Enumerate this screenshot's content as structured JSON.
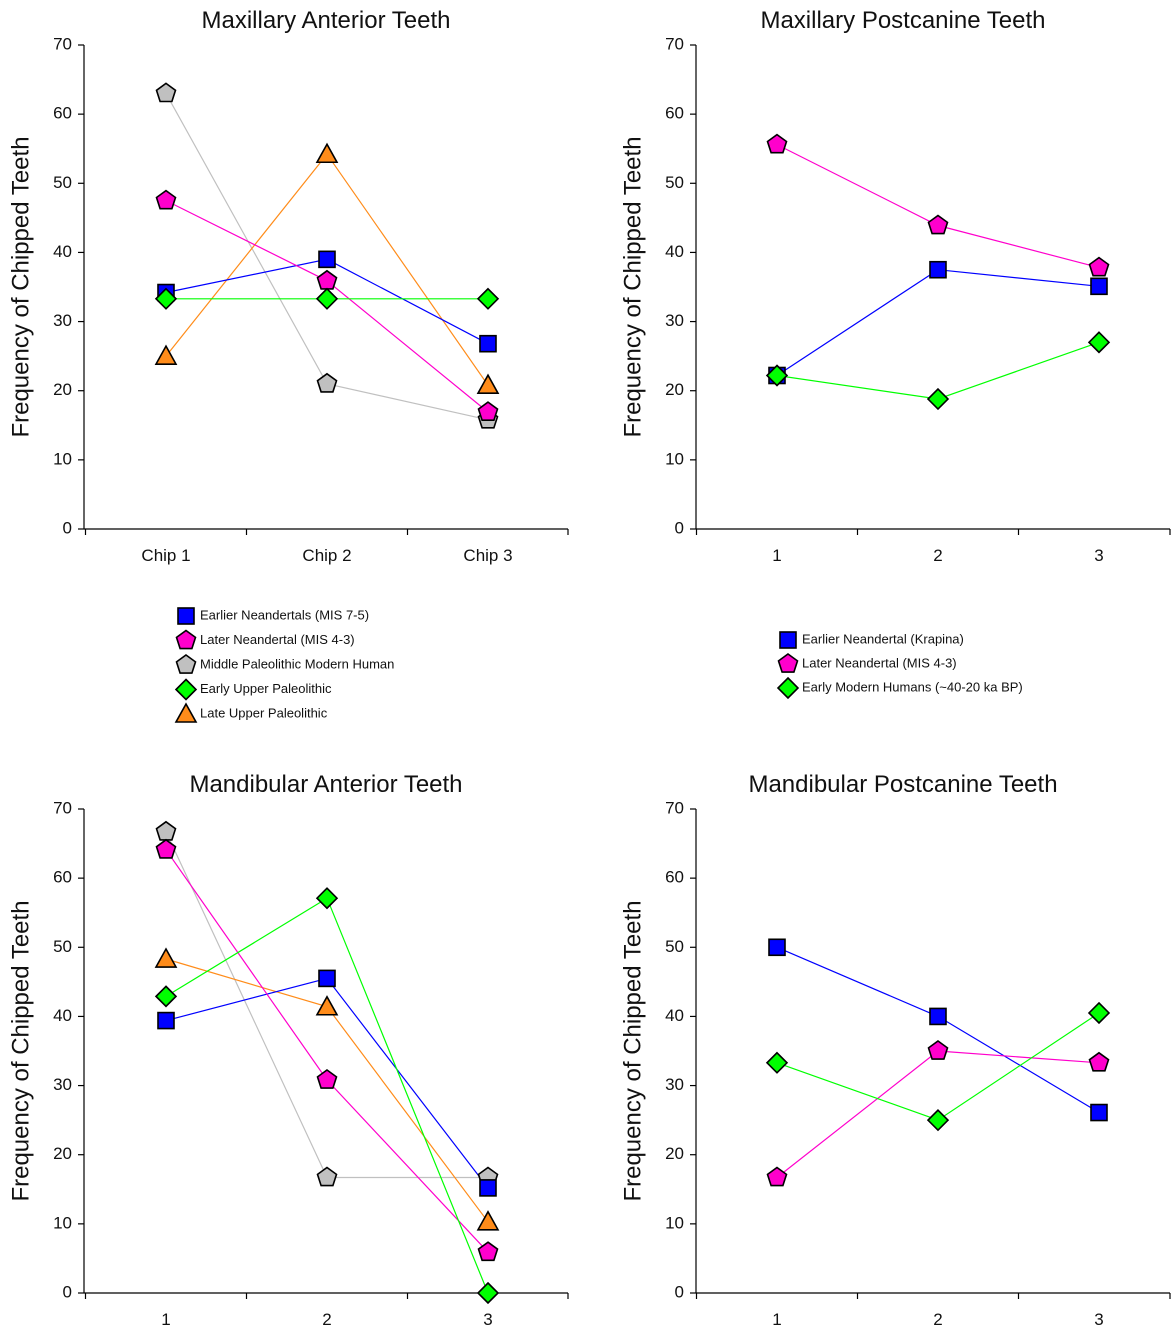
{
  "figure_type": "panel of four line charts",
  "legends": [
    {
      "entries": [
        {
          "label": "Earlier Neandertals (MIS 7-5)",
          "color": "#0000ff",
          "marker": "square"
        },
        {
          "label": "Later Neandertal (MIS 4-3)",
          "color": "#ff00cc",
          "marker": "pentagon"
        },
        {
          "label": "Middle Paleolithic Modern Human",
          "color": "#c0c0c0",
          "marker": "pentagon"
        },
        {
          "label": "Early Upper Paleolithic",
          "color": "#00ff00",
          "marker": "diamond"
        },
        {
          "label": "Late Upper Paleolithic",
          "color": "#ff8c1a",
          "marker": "triangle"
        }
      ]
    },
    {
      "entries": [
        {
          "label": "Earlier Neandertal (Krapina)",
          "color": "#0000ff",
          "marker": "square"
        },
        {
          "label": "Later Neandertal (MIS 4-3)",
          "color": "#ff00cc",
          "marker": "pentagon"
        },
        {
          "label": "Early Modern Humans (~40-20 ka BP)",
          "color": "#00ff00",
          "marker": "diamond"
        }
      ]
    }
  ],
  "chart_data": [
    {
      "type": "line",
      "title": "Maxillary Anterior Teeth",
      "xlabel": "",
      "ylabel": "Frequency of Chipped Teeth",
      "ylim": [
        0,
        70
      ],
      "yticks": [
        0,
        10,
        20,
        30,
        40,
        50,
        60,
        70
      ],
      "grid": false,
      "categories": [
        "Chip 1",
        "Chip 2",
        "Chip 3"
      ],
      "series": [
        {
          "name": "Middle Paleolithic Modern Human",
          "color": "#c0c0c0",
          "marker": "pentagon",
          "values": [
            63,
            21,
            15.8
          ]
        },
        {
          "name": "Late Upper Paleolithic",
          "color": "#ff8c1a",
          "marker": "triangle",
          "values": [
            25,
            54.2,
            20.8
          ]
        },
        {
          "name": "Earlier Neandertals (MIS 7-5)",
          "color": "#0000ff",
          "marker": "square",
          "values": [
            34.2,
            39,
            26.8
          ]
        },
        {
          "name": "Later Neandertal (MIS 4-3)",
          "color": "#ff00cc",
          "marker": "pentagon",
          "values": [
            47.5,
            35.9,
            16.9
          ]
        },
        {
          "name": "Early Upper Paleolithic",
          "color": "#00ff00",
          "marker": "diamond",
          "values": [
            33.3,
            33.3,
            33.3
          ]
        }
      ]
    },
    {
      "type": "line",
      "title": "Maxillary Postcanine Teeth",
      "xlabel": "",
      "ylabel": "Frequency of Chipped Teeth",
      "ylim": [
        0,
        70
      ],
      "yticks": [
        0,
        10,
        20,
        30,
        40,
        50,
        60,
        70
      ],
      "grid": false,
      "categories": [
        "1",
        "2",
        "3"
      ],
      "series": [
        {
          "name": "Earlier Neandertal (Krapina)",
          "color": "#0000ff",
          "marker": "square",
          "values": [
            22.2,
            37.5,
            35.1
          ]
        },
        {
          "name": "Later Neandertal (MIS 4-3)",
          "color": "#ff00cc",
          "marker": "pentagon",
          "values": [
            55.6,
            43.9,
            37.8
          ]
        },
        {
          "name": "Early Modern Humans (~40-20 ka BP)",
          "color": "#00ff00",
          "marker": "diamond",
          "values": [
            22.2,
            18.8,
            27
          ]
        }
      ]
    },
    {
      "type": "line",
      "title": "Mandibular Anterior Teeth",
      "xlabel": "",
      "ylabel": "Frequency of Chipped Teeth",
      "ylim": [
        0,
        70
      ],
      "yticks": [
        0,
        10,
        20,
        30,
        40,
        50,
        60,
        70
      ],
      "grid": false,
      "categories": [
        "1",
        "2",
        "3"
      ],
      "series": [
        {
          "name": "Middle Paleolithic Modern Human",
          "color": "#c0c0c0",
          "marker": "pentagon",
          "values": [
            66.7,
            16.7,
            16.7
          ]
        },
        {
          "name": "Late Upper Paleolithic",
          "color": "#ff8c1a",
          "marker": "triangle",
          "values": [
            48.3,
            41.4,
            10.3
          ]
        },
        {
          "name": "Earlier Neandertals (MIS 7-5)",
          "color": "#0000ff",
          "marker": "square",
          "values": [
            39.4,
            45.5,
            15.2
          ]
        },
        {
          "name": "Later Neandertal (MIS 4-3)",
          "color": "#ff00cc",
          "marker": "pentagon",
          "values": [
            64.1,
            30.8,
            5.9
          ]
        },
        {
          "name": "Early Upper Paleolithic",
          "color": "#00ff00",
          "marker": "diamond",
          "values": [
            42.9,
            57.1,
            0
          ]
        }
      ]
    },
    {
      "type": "line",
      "title": "Mandibular Postcanine Teeth",
      "xlabel": "",
      "ylabel": "Frequency of Chipped Teeth",
      "ylim": [
        0,
        70
      ],
      "yticks": [
        0,
        10,
        20,
        30,
        40,
        50,
        60,
        70
      ],
      "grid": false,
      "categories": [
        "1",
        "2",
        "3"
      ],
      "series": [
        {
          "name": "Earlier Neandertal (Krapina)",
          "color": "#0000ff",
          "marker": "square",
          "values": [
            50,
            40,
            26.1
          ]
        },
        {
          "name": "Later Neandertal (MIS 4-3)",
          "color": "#ff00cc",
          "marker": "pentagon",
          "values": [
            16.7,
            35,
            33.3
          ]
        },
        {
          "name": "Early Modern Humans (~40-20 ka BP)",
          "color": "#00ff00",
          "marker": "diamond",
          "values": [
            33.3,
            25,
            40.5
          ]
        }
      ]
    }
  ]
}
